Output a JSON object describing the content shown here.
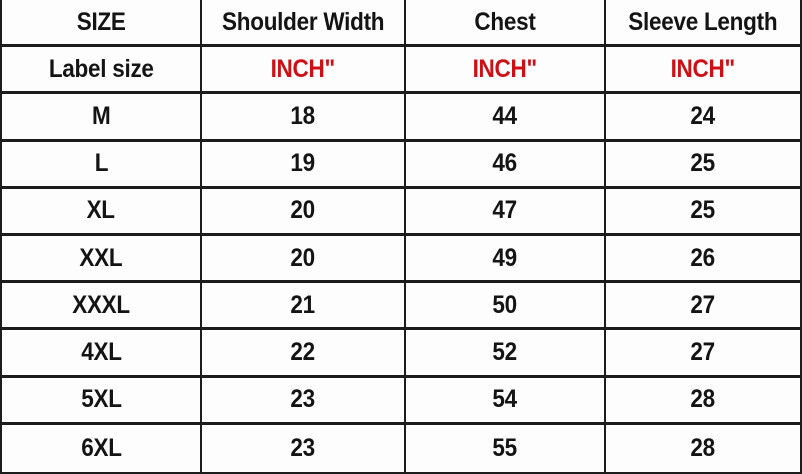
{
  "table": {
    "headers": [
      "SIZE",
      "Shoulder Width",
      "Chest",
      "Sleeve Length"
    ],
    "unit_row": {
      "label": "Label size",
      "units": [
        "INCH\"",
        "INCH\"",
        "INCH\""
      ]
    },
    "rows": [
      {
        "size": "M",
        "shoulder": "18",
        "chest": "44",
        "sleeve": "24"
      },
      {
        "size": "L",
        "shoulder": "19",
        "chest": "46",
        "sleeve": "25"
      },
      {
        "size": "XL",
        "shoulder": "20",
        "chest": "47",
        "sleeve": "25"
      },
      {
        "size": "XXL",
        "shoulder": "20",
        "chest": "49",
        "sleeve": "26"
      },
      {
        "size": "XXXL",
        "shoulder": "21",
        "chest": "50",
        "sleeve": "27"
      },
      {
        "size": "4XL",
        "shoulder": "22",
        "chest": "52",
        "sleeve": "27"
      },
      {
        "size": "5XL",
        "shoulder": "23",
        "chest": "54",
        "sleeve": "28"
      },
      {
        "size": "6XL",
        "shoulder": "23",
        "chest": "55",
        "sleeve": "28"
      }
    ],
    "colors": {
      "unit_text": "#cc1016",
      "body_text": "#141414",
      "border": "#1c1c1c",
      "background": "#fdfdfd"
    }
  },
  "chart_data": {
    "type": "table",
    "columns": [
      "SIZE",
      "Shoulder Width",
      "Chest",
      "Sleeve Length"
    ],
    "units_row": [
      "Label size",
      "INCH\"",
      "INCH\"",
      "INCH\""
    ],
    "rows": [
      [
        "M",
        18,
        44,
        24
      ],
      [
        "L",
        19,
        46,
        25
      ],
      [
        "XL",
        20,
        47,
        25
      ],
      [
        "XXL",
        20,
        49,
        26
      ],
      [
        "XXXL",
        21,
        50,
        27
      ],
      [
        "4XL",
        22,
        52,
        27
      ],
      [
        "5XL",
        23,
        54,
        28
      ],
      [
        "6XL",
        23,
        55,
        28
      ]
    ],
    "notes": "All measurements in inches; grid table with black rules on white background"
  }
}
